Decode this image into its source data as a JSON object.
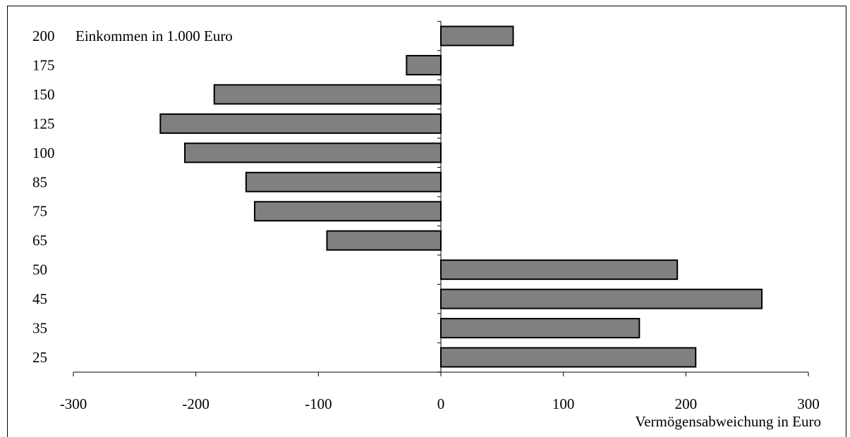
{
  "chart_data": {
    "type": "bar",
    "orientation": "horizontal",
    "categories": [
      "25",
      "35",
      "45",
      "50",
      "65",
      "75",
      "85",
      "100",
      "125",
      "150",
      "175",
      "200"
    ],
    "values": [
      208,
      162,
      262,
      193,
      -93,
      -152,
      -159,
      -209,
      -229,
      -185,
      -28,
      59
    ],
    "xlim": [
      -300,
      300
    ],
    "xticks": [
      "-300",
      "-200",
      "-100",
      "0",
      "100",
      "200",
      "300"
    ],
    "ylabel": "Einkommen in 1.000 Euro",
    "xlabel": "Vermögensabweichung in Euro",
    "bar_color": "#808080",
    "grid": false
  }
}
